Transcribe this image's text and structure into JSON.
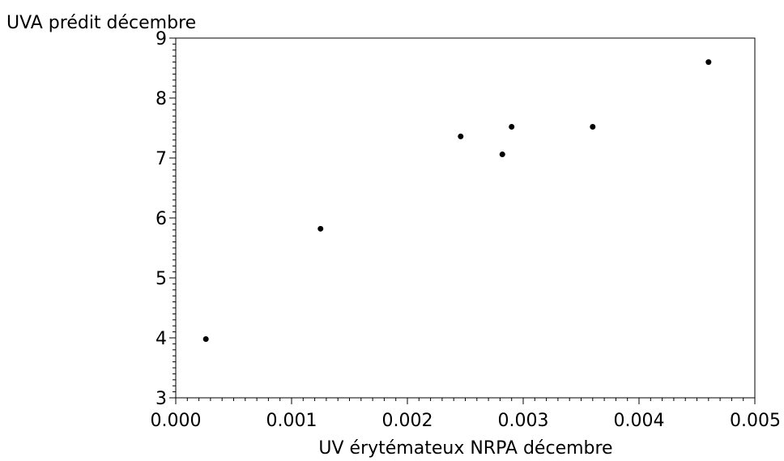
{
  "chart_data": {
    "type": "scatter",
    "ylabel": "UVA prédit décembre",
    "xlabel": "UV érytémateux NRPA décembre",
    "xlim": [
      0.0,
      0.005
    ],
    "ylim": [
      3,
      9
    ],
    "xticks": [
      "0.000",
      "0.001",
      "0.002",
      "0.003",
      "0.004",
      "0.005"
    ],
    "yticks": [
      "3",
      "4",
      "5",
      "6",
      "7",
      "8",
      "9"
    ],
    "grid": false,
    "series": [
      {
        "points": [
          {
            "x": 0.00026,
            "y": 3.98
          },
          {
            "x": 0.00125,
            "y": 5.82
          },
          {
            "x": 0.00246,
            "y": 7.36
          },
          {
            "x": 0.00282,
            "y": 7.06
          },
          {
            "x": 0.0029,
            "y": 7.52
          },
          {
            "x": 0.0036,
            "y": 7.52
          },
          {
            "x": 0.0046,
            "y": 8.6
          }
        ]
      }
    ],
    "marker_color": "#000000"
  }
}
